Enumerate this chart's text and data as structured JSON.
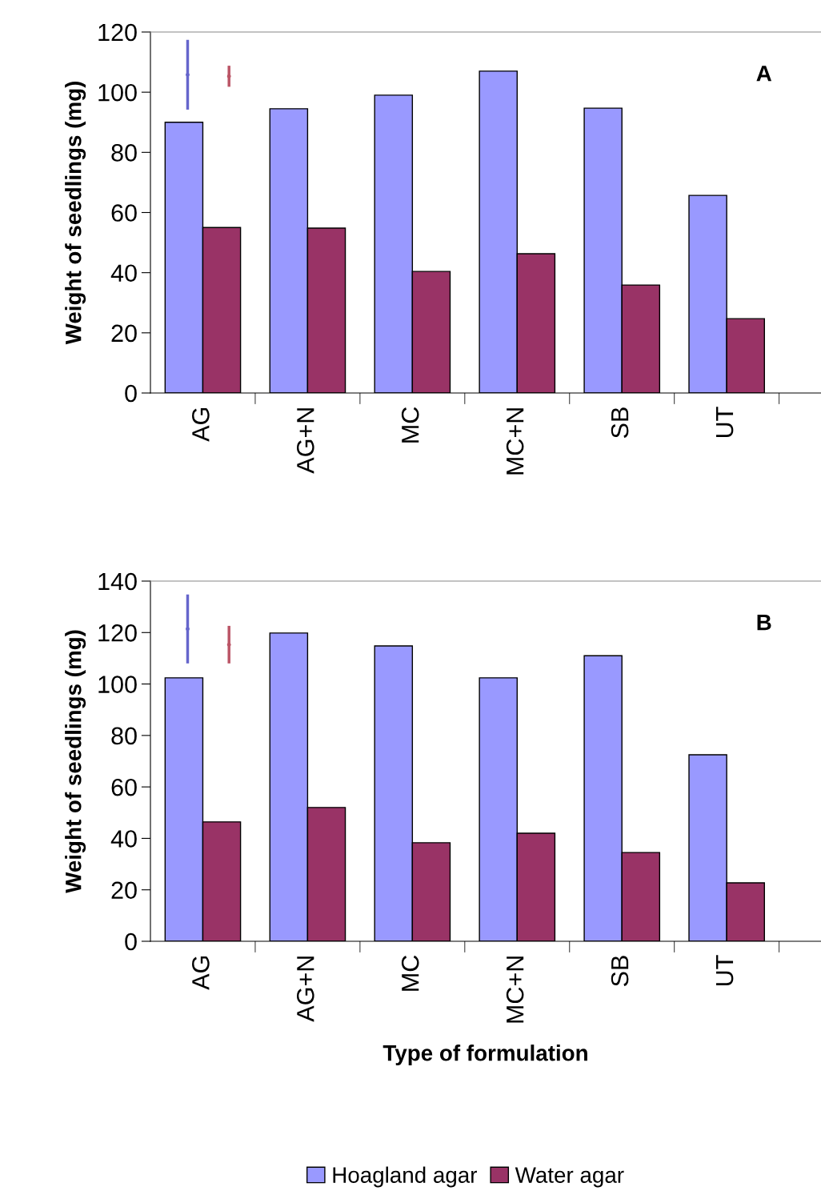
{
  "chart_data": [
    {
      "type": "bar",
      "ylabel": "Weight of seedlings (mg)",
      "categories": [
        "AG",
        "AG+N",
        "MC",
        "MC+N",
        "SB",
        "UT"
      ],
      "ylim": [
        0,
        120
      ],
      "yticks": [
        0,
        20,
        40,
        60,
        80,
        100,
        120
      ],
      "annotations": [
        "A"
      ],
      "series": [
        {
          "color": "#9999ff",
          "values": [
            90,
            94.5,
            99,
            107,
            94.7,
            65.7
          ]
        },
        {
          "color": "#993366",
          "values": [
            55,
            54.8,
            40.4,
            46.3,
            35.9,
            24.7
          ]
        },
        {
          "type": "scatter",
          "color": "#6666cc",
          "x": [
            "AG"
          ],
          "values": [
            105.8
          ],
          "errors": [
            11.6
          ]
        },
        {
          "type": "scatter",
          "color": "#bb5566",
          "x": [
            "AG"
          ],
          "values": [
            105.3
          ],
          "errors": [
            3.5
          ]
        }
      ]
    },
    {
      "type": "bar",
      "ylabel": "Weight of seedlings (mg)",
      "xlabel": "Type of formulation",
      "categories": [
        "AG",
        "AG+N",
        "MC",
        "MC+N",
        "SB",
        "UT"
      ],
      "ylim": [
        0,
        140
      ],
      "yticks": [
        0,
        20,
        40,
        60,
        80,
        100,
        120,
        140
      ],
      "annotations": [
        "B"
      ],
      "series": [
        {
          "name": "Hoagland agar",
          "color": "#9999ff",
          "values": [
            102.4,
            119.8,
            114.8,
            102.4,
            111,
            72.5
          ]
        },
        {
          "name": "Water agar",
          "color": "#993366",
          "values": [
            46.4,
            52,
            38.3,
            42,
            34.5,
            22.7
          ]
        },
        {
          "type": "scatter",
          "color": "#6666cc",
          "x": [
            "AG"
          ],
          "values": [
            121.4
          ],
          "errors": [
            13.4
          ]
        },
        {
          "type": "scatter",
          "color": "#bb5566",
          "x": [
            "AG"
          ],
          "values": [
            115.3
          ],
          "errors": [
            7.3
          ]
        }
      ],
      "legend": "bottom"
    }
  ]
}
